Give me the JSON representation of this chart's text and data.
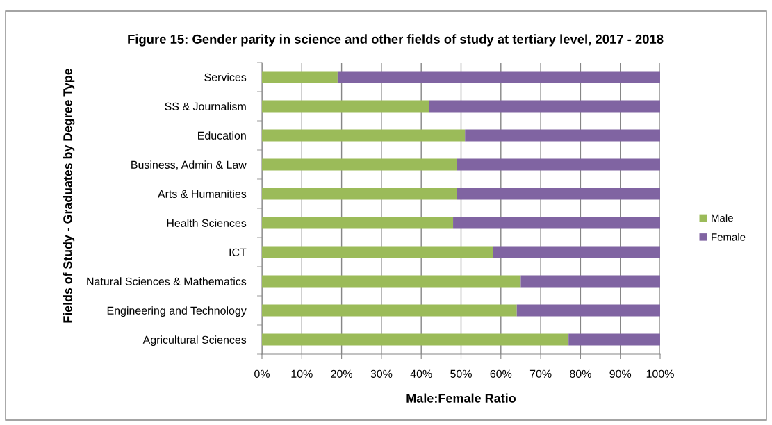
{
  "chart_data": {
    "type": "bar",
    "orientation": "horizontal",
    "stacked": true,
    "title": "Figure 15: Gender parity in science and other fields of study at tertiary level, 2017 - 2018",
    "xlabel": "Male:Female Ratio",
    "ylabel": "Fields of Study - Graduates by Degree Type",
    "categories": [
      "Services",
      "SS & Journalism",
      "Education",
      "Business, Admin & Law",
      "Arts & Humanities",
      "Health Sciences",
      "ICT",
      "Natural Sciences & Mathematics",
      "Engineering and Technology",
      "Agricultural Sciences"
    ],
    "series": [
      {
        "name": "Male",
        "color": "#9bbb59",
        "values": [
          19,
          42,
          51,
          49,
          49,
          48,
          58,
          65,
          64,
          77
        ]
      },
      {
        "name": "Female",
        "color": "#8064a2",
        "values": [
          81,
          58,
          49,
          51,
          51,
          52,
          42,
          35,
          36,
          23
        ]
      }
    ],
    "xlim": [
      0,
      100
    ],
    "xticks": [
      {
        "value": 0,
        "label": "0%"
      },
      {
        "value": 10,
        "label": "10%"
      },
      {
        "value": 20,
        "label": "20%"
      },
      {
        "value": 30,
        "label": "30%"
      },
      {
        "value": 40,
        "label": "40%"
      },
      {
        "value": 50,
        "label": "50%"
      },
      {
        "value": 60,
        "label": "60%"
      },
      {
        "value": 70,
        "label": "70%"
      },
      {
        "value": 80,
        "label": "80%"
      },
      {
        "value": 90,
        "label": "90%"
      },
      {
        "value": 100,
        "label": "100%"
      }
    ],
    "grid": "x",
    "legend": "right"
  }
}
